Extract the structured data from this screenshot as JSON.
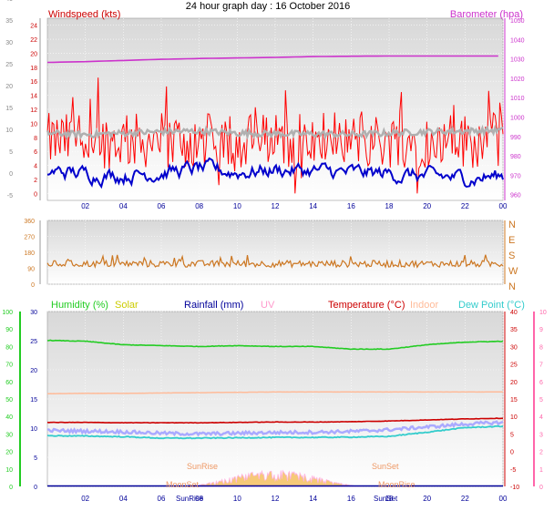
{
  "title": "24 hour graph day : 16 October 2016",
  "colors": {
    "wind": "#ff0000",
    "wind_avg": "#0000cc",
    "gust_avg": "#b0b0b0",
    "baro": "#cc33cc",
    "dir": "#cc7722",
    "humidity": "#22cc22",
    "solar": "#cccc00",
    "rain": "#000099",
    "uv": "#ff99cc",
    "temperature": "#cc0000",
    "indoor": "#ffbb99",
    "dewpoint": "#33cccc",
    "feels": "#aaaaff"
  },
  "chart_data": [
    {
      "type": "line",
      "title": "",
      "x_ticks": [
        "02",
        "04",
        "06",
        "08",
        "10",
        "12",
        "14",
        "16",
        "18",
        "20",
        "22",
        "00"
      ],
      "left_label": "Windspeed (kts)",
      "right_label": "Barometer (hpa)",
      "left_ticks": [
        "-5",
        "0",
        "5",
        "10",
        "15",
        "20",
        "25",
        "30",
        "35",
        "40"
      ],
      "inner_ticks": [
        "0",
        "2",
        "4",
        "6",
        "8",
        "10",
        "12",
        "14",
        "16",
        "18",
        "20",
        "22",
        "24"
      ],
      "right_ticks": [
        "960",
        "970",
        "980",
        "990",
        "1000",
        "1010",
        "1020",
        "1030",
        "1040",
        "1050"
      ],
      "ylim_kts": [
        -1,
        25
      ],
      "ylim_hpa": [
        957,
        1051
      ],
      "series": [
        {
          "name": "Windspeed",
          "units": "kts",
          "range": [
            0,
            17
          ],
          "typical": 7.5
        },
        {
          "name": "Wind average",
          "units": "kts",
          "values": [
            3.2,
            2.8,
            2.6,
            3.0,
            3.5,
            3.0,
            3.4,
            3.2,
            2.9,
            2.8,
            2.4,
            2.2,
            2.5
          ]
        },
        {
          "name": "Gust average",
          "units": "kts",
          "values": [
            8.6,
            8.4,
            8.6,
            8.8,
            8.9,
            8.6,
            8.5,
            8.5,
            8.4,
            8.6,
            8.8,
            8.9,
            9.0
          ]
        },
        {
          "name": "Barometer",
          "units": "hpa",
          "values": [
            1028.2,
            1028.6,
            1029.2,
            1029.8,
            1030.2,
            1030.5,
            1030.8,
            1031.2,
            1031.4,
            1031.5,
            1031.5,
            1031.5,
            1031.5
          ]
        }
      ]
    },
    {
      "type": "line",
      "title": "",
      "left_ticks": [
        "0",
        "90",
        "180",
        "270",
        "360"
      ],
      "right_ticks": [
        "N",
        "W",
        "S",
        "E",
        "N"
      ],
      "ylim": [
        0,
        360
      ],
      "series": [
        {
          "name": "Wind direction",
          "units": "deg",
          "typical": 115
        }
      ]
    },
    {
      "type": "line",
      "title": "",
      "x_ticks": [
        "02",
        "04",
        "06",
        "08",
        "10",
        "12",
        "14",
        "16",
        "18",
        "20",
        "22",
        "00"
      ],
      "legend": [
        "Humidity (%)",
        "Solar",
        "Rainfall (mm)",
        "UV",
        "Temperature (°C)",
        "Indoor",
        "Dew Point (°C)"
      ],
      "left_ticks": [
        "0",
        "10",
        "20",
        "30",
        "40",
        "50",
        "60",
        "70",
        "80",
        "90",
        "100"
      ],
      "inner_ticks": [
        "0",
        "5",
        "10",
        "15",
        "20",
        "25",
        "30"
      ],
      "right_ticks": [
        "-10",
        "-5",
        "0",
        "5",
        "10",
        "15",
        "20",
        "25",
        "30",
        "35",
        "40"
      ],
      "uv_ticks": [
        "0",
        "1",
        "2",
        "3",
        "4",
        "5",
        "6",
        "7",
        "8",
        "9",
        "10"
      ],
      "annotations": [
        "SunRise",
        "SunSet",
        "MoonSet",
        "MoonRise",
        "SunRise",
        "SunSet"
      ],
      "series": [
        {
          "name": "Humidity",
          "units": "%",
          "values": [
            83.5,
            83,
            81,
            80.5,
            80,
            80.5,
            80,
            80,
            78.5,
            78.5,
            81,
            82.5,
            83
          ]
        },
        {
          "name": "Indoor",
          "units": "°C",
          "values": [
            16.5,
            16.6,
            16.6,
            16.7,
            16.8,
            16.9,
            17,
            17,
            17,
            17,
            17,
            17,
            17
          ]
        },
        {
          "name": "Temperature",
          "units": "°C",
          "values": [
            8.3,
            8.3,
            8.2,
            8.2,
            8.2,
            8.3,
            8.4,
            8.4,
            8.5,
            8.7,
            9.0,
            9.3,
            9.5
          ]
        },
        {
          "name": "Feels like",
          "units": "°C",
          "values": [
            6.0,
            5.8,
            5.6,
            5.2,
            5.0,
            5.2,
            5.4,
            5.5,
            5.7,
            6.2,
            7.0,
            7.8,
            8.3
          ]
        },
        {
          "name": "Dew Point",
          "units": "°C",
          "values": [
            4.5,
            4.4,
            4.2,
            3.8,
            3.8,
            3.9,
            4.0,
            4.0,
            4.1,
            4.3,
            5.5,
            6.8,
            7.2
          ]
        },
        {
          "name": "Solar",
          "units": "W/m2",
          "peak_hour": 13.5
        }
      ]
    }
  ]
}
